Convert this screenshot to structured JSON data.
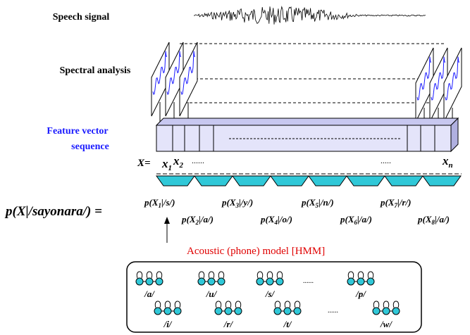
{
  "labels": {
    "speech": "Speech signal",
    "spectral": "Spectral analysis",
    "feature1": "Feature vector",
    "feature2": "sequence"
  },
  "sequence": {
    "x_eq": "X=",
    "x1": {
      "base": "x",
      "sub": "1"
    },
    "x2": {
      "base": "x",
      "sub": "2"
    },
    "dots1": "......",
    "dots2": ".....",
    "xn": {
      "base": "x",
      "sub": "n"
    }
  },
  "equation": {
    "lhs": "p(X|/sayonara/) =",
    "terms": [
      {
        "base": "p(X",
        "sub": "1",
        "rest": "|/s/)"
      },
      {
        "base": "p(X",
        "sub": "2",
        "rest": "|/a/)"
      },
      {
        "base": "p(X",
        "sub": "3",
        "rest": "|/y/)"
      },
      {
        "base": "p(X",
        "sub": "4",
        "rest": "|/o/)"
      },
      {
        "base": "p(X",
        "sub": "5",
        "rest": "|/n/)"
      },
      {
        "base": "p(X",
        "sub": "6",
        "rest": "|/a/)"
      },
      {
        "base": "p(X",
        "sub": "7",
        "rest": "|/r/)"
      },
      {
        "base": "p(X",
        "sub": "8",
        "rest": "|/a/)"
      }
    ]
  },
  "model": {
    "title": "Acoustic (phone) model  [HMM]",
    "row1": [
      "/a/",
      "/u/",
      "/s/",
      "......",
      "/p/"
    ],
    "row2": [
      "/i/",
      "/r/",
      "/t/",
      "......",
      "/w/"
    ]
  }
}
